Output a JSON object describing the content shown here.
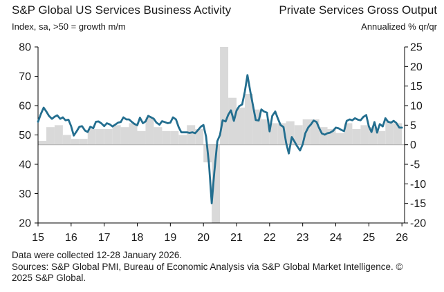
{
  "titles": {
    "left_title": "S&P Global US Services Business Activity",
    "right_title": "Private Services Gross Output",
    "left_subtitle": "Index, sa, >50 = growth m/m",
    "right_subtitle": "Annualized % qr/qr"
  },
  "footer": {
    "line1": "Data were collected 12-28 January 2026.",
    "line2": "Sources: S&P Global PMI, Bureau of Economic Analysis via S&P Global Market Intelligence. ©",
    "line3": "2025 S&P Global."
  },
  "colors": {
    "line": "#236e8f",
    "bars": "#d9d9d9",
    "zero_line": "#b3b3b3"
  },
  "chart_data": {
    "type": "bar+line",
    "x_tick_labels": [
      "15",
      "16",
      "17",
      "18",
      "19",
      "20",
      "21",
      "22",
      "23",
      "24",
      "25",
      "26"
    ],
    "x_range": [
      2015.0,
      2026.08
    ],
    "left_axis": {
      "range": [
        20,
        80
      ],
      "ticks": [
        20,
        30,
        40,
        50,
        60,
        70,
        80
      ]
    },
    "right_axis": {
      "range": [
        -20,
        25
      ],
      "ticks": [
        -20,
        -15,
        -10,
        -5,
        0,
        5,
        10,
        15,
        20,
        25
      ]
    },
    "bars_axis": "right",
    "line_axis": "left",
    "bars": {
      "name": "Private Services Gross Output",
      "quarters": [
        [
          2015.0,
          1.0
        ],
        [
          2015.25,
          4.5
        ],
        [
          2015.5,
          5.0
        ],
        [
          2015.75,
          2.5
        ],
        [
          2016.0,
          1.5
        ],
        [
          2016.25,
          1.5
        ],
        [
          2016.5,
          4.0
        ],
        [
          2016.75,
          4.0
        ],
        [
          2017.0,
          4.0
        ],
        [
          2017.25,
          5.0
        ],
        [
          2017.5,
          4.5
        ],
        [
          2017.75,
          5.5
        ],
        [
          2018.0,
          3.5
        ],
        [
          2018.25,
          7.0
        ],
        [
          2018.5,
          4.5
        ],
        [
          2018.75,
          3.5
        ],
        [
          2019.0,
          3.5
        ],
        [
          2019.25,
          2.5
        ],
        [
          2019.5,
          5.0
        ],
        [
          2019.75,
          4.0
        ],
        [
          2020.0,
          -4.5
        ],
        [
          2020.25,
          -20.0
        ],
        [
          2020.5,
          25.0
        ],
        [
          2020.75,
          12.0
        ],
        [
          2021.0,
          9.5
        ],
        [
          2021.25,
          13.0
        ],
        [
          2021.5,
          9.0
        ],
        [
          2021.75,
          6.5
        ],
        [
          2022.0,
          5.5
        ],
        [
          2022.25,
          5.5
        ],
        [
          2022.5,
          6.0
        ],
        [
          2022.75,
          5.0
        ],
        [
          2023.0,
          6.5
        ],
        [
          2023.25,
          6.5
        ],
        [
          2023.5,
          4.5
        ],
        [
          2023.75,
          4.0
        ],
        [
          2024.0,
          3.0
        ],
        [
          2024.25,
          5.5
        ],
        [
          2024.5,
          4.0
        ],
        [
          2024.75,
          5.0
        ],
        [
          2025.0,
          4.5
        ],
        [
          2025.25,
          3.5
        ],
        [
          2025.5,
          6.0
        ],
        [
          2025.75,
          5.5
        ]
      ]
    },
    "line": {
      "name": "S&P Global US Services Business Activity",
      "points": [
        [
          2015.0,
          54.5
        ],
        [
          2015.08,
          57.0
        ],
        [
          2015.17,
          59.3
        ],
        [
          2015.25,
          58.0
        ],
        [
          2015.33,
          56.5
        ],
        [
          2015.42,
          55.5
        ],
        [
          2015.5,
          56.2
        ],
        [
          2015.58,
          56.7
        ],
        [
          2015.67,
          55.5
        ],
        [
          2015.75,
          56.0
        ],
        [
          2015.83,
          55.0
        ],
        [
          2015.92,
          55.2
        ],
        [
          2016.0,
          53.0
        ],
        [
          2016.08,
          49.8
        ],
        [
          2016.17,
          51.3
        ],
        [
          2016.25,
          52.8
        ],
        [
          2016.33,
          53.0
        ],
        [
          2016.42,
          51.5
        ],
        [
          2016.5,
          51.0
        ],
        [
          2016.58,
          52.8
        ],
        [
          2016.67,
          52.3
        ],
        [
          2016.75,
          54.5
        ],
        [
          2016.83,
          54.6
        ],
        [
          2016.92,
          53.9
        ],
        [
          2017.0,
          53.0
        ],
        [
          2017.08,
          54.0
        ],
        [
          2017.17,
          53.6
        ],
        [
          2017.25,
          52.9
        ],
        [
          2017.33,
          53.5
        ],
        [
          2017.42,
          54.2
        ],
        [
          2017.5,
          54.4
        ],
        [
          2017.58,
          56.0
        ],
        [
          2017.67,
          55.3
        ],
        [
          2017.75,
          55.3
        ],
        [
          2017.83,
          54.5
        ],
        [
          2017.92,
          53.7
        ],
        [
          2018.0,
          53.3
        ],
        [
          2018.08,
          55.9
        ],
        [
          2018.17,
          54.0
        ],
        [
          2018.25,
          54.6
        ],
        [
          2018.33,
          56.5
        ],
        [
          2018.42,
          56.0
        ],
        [
          2018.5,
          55.5
        ],
        [
          2018.58,
          54.2
        ],
        [
          2018.67,
          53.5
        ],
        [
          2018.75,
          54.7
        ],
        [
          2018.83,
          54.4
        ],
        [
          2018.92,
          54.0
        ],
        [
          2019.0,
          54.2
        ],
        [
          2019.08,
          56.0
        ],
        [
          2019.17,
          55.3
        ],
        [
          2019.25,
          52.7
        ],
        [
          2019.33,
          50.9
        ],
        [
          2019.42,
          50.9
        ],
        [
          2019.5,
          50.9
        ],
        [
          2019.58,
          50.7
        ],
        [
          2019.67,
          50.9
        ],
        [
          2019.75,
          50.6
        ],
        [
          2019.83,
          51.6
        ],
        [
          2019.92,
          52.8
        ],
        [
          2020.0,
          53.4
        ],
        [
          2020.08,
          49.4
        ],
        [
          2020.17,
          39.8
        ],
        [
          2020.25,
          26.7
        ],
        [
          2020.33,
          37.5
        ],
        [
          2020.42,
          47.9
        ],
        [
          2020.5,
          50.0
        ],
        [
          2020.58,
          55.0
        ],
        [
          2020.67,
          54.6
        ],
        [
          2020.75,
          56.9
        ],
        [
          2020.83,
          58.4
        ],
        [
          2020.92,
          54.8
        ],
        [
          2021.0,
          58.3
        ],
        [
          2021.08,
          59.8
        ],
        [
          2021.17,
          60.4
        ],
        [
          2021.25,
          64.7
        ],
        [
          2021.33,
          70.4
        ],
        [
          2021.42,
          64.6
        ],
        [
          2021.5,
          59.9
        ],
        [
          2021.58,
          55.1
        ],
        [
          2021.67,
          54.9
        ],
        [
          2021.75,
          58.7
        ],
        [
          2021.83,
          58.0
        ],
        [
          2021.92,
          57.6
        ],
        [
          2022.0,
          51.2
        ],
        [
          2022.08,
          56.5
        ],
        [
          2022.17,
          58.0
        ],
        [
          2022.25,
          55.6
        ],
        [
          2022.33,
          53.4
        ],
        [
          2022.42,
          52.7
        ],
        [
          2022.5,
          47.3
        ],
        [
          2022.58,
          43.7
        ],
        [
          2022.67,
          49.3
        ],
        [
          2022.75,
          47.8
        ],
        [
          2022.83,
          46.2
        ],
        [
          2022.92,
          44.7
        ],
        [
          2023.0,
          46.8
        ],
        [
          2023.08,
          50.6
        ],
        [
          2023.17,
          52.6
        ],
        [
          2023.25,
          53.6
        ],
        [
          2023.33,
          54.9
        ],
        [
          2023.42,
          54.4
        ],
        [
          2023.5,
          52.3
        ],
        [
          2023.58,
          50.5
        ],
        [
          2023.67,
          50.1
        ],
        [
          2023.75,
          50.6
        ],
        [
          2023.83,
          50.8
        ],
        [
          2023.92,
          51.4
        ],
        [
          2024.0,
          52.5
        ],
        [
          2024.08,
          52.3
        ],
        [
          2024.17,
          51.7
        ],
        [
          2024.25,
          51.3
        ],
        [
          2024.33,
          54.8
        ],
        [
          2024.42,
          55.3
        ],
        [
          2024.5,
          55.0
        ],
        [
          2024.58,
          55.7
        ],
        [
          2024.67,
          55.2
        ],
        [
          2024.75,
          55.0
        ],
        [
          2024.83,
          56.1
        ],
        [
          2024.92,
          56.8
        ],
        [
          2025.0,
          52.9
        ],
        [
          2025.08,
          51.0
        ],
        [
          2025.17,
          54.4
        ],
        [
          2025.25,
          50.8
        ],
        [
          2025.33,
          53.7
        ],
        [
          2025.42,
          52.9
        ],
        [
          2025.5,
          55.7
        ],
        [
          2025.58,
          54.5
        ],
        [
          2025.67,
          54.2
        ],
        [
          2025.75,
          54.8
        ],
        [
          2025.83,
          54.1
        ],
        [
          2025.92,
          52.5
        ],
        [
          2026.0,
          52.5
        ]
      ]
    },
    "grid": false,
    "legend": "none"
  }
}
